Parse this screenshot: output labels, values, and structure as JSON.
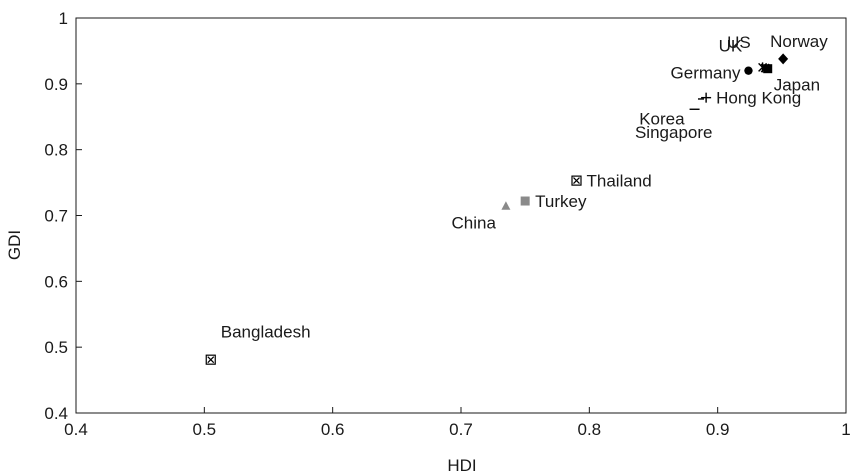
{
  "chart_data": {
    "type": "scatter",
    "xlabel": "HDI",
    "ylabel": "GDI",
    "xlim": [
      0.4,
      1.0
    ],
    "ylim": [
      0.4,
      1.0
    ],
    "xticks": [
      0.4,
      0.5,
      0.6,
      0.7,
      0.8,
      0.9,
      1
    ],
    "yticks": [
      0.4,
      0.5,
      0.6,
      0.7,
      0.8,
      0.9,
      1
    ],
    "tick_labels": [
      "0.4",
      "0.5",
      "0.6",
      "0.7",
      "0.8",
      "0.9",
      "1"
    ],
    "grid": false,
    "points": [
      {
        "label": "Bangladesh",
        "x": 0.505,
        "y": 0.481,
        "marker": "boxed-x",
        "color": "#000000",
        "label_pos": "above-right"
      },
      {
        "label": "China",
        "x": 0.735,
        "y": 0.714,
        "marker": "triangle",
        "color": "#8a8a8a",
        "label_pos": "below-left"
      },
      {
        "label": "Turkey",
        "x": 0.75,
        "y": 0.722,
        "marker": "square",
        "color": "#8a8a8a",
        "label_pos": "right"
      },
      {
        "label": "Thailand",
        "x": 0.79,
        "y": 0.753,
        "marker": "boxed-x",
        "color": "#000000",
        "label_pos": "right"
      },
      {
        "label": "Korea",
        "x": 0.882,
        "y": 0.872,
        "marker": "dash",
        "color": "#000000",
        "label_pos": "below-left"
      },
      {
        "label": "Singapore",
        "x": 0.887,
        "y": 0.877,
        "marker": "minus",
        "color": "#000000",
        "label_pos": "below-right"
      },
      {
        "label": "Hong Kong",
        "x": 0.891,
        "y": 0.879,
        "marker": "plus",
        "color": "#000000",
        "label_pos": "right"
      },
      {
        "label": "Germany",
        "x": 0.924,
        "y": 0.92,
        "marker": "circle",
        "color": "#000000",
        "label_pos": "left"
      },
      {
        "label": "UK",
        "x": 0.935,
        "y": 0.925,
        "marker": "star",
        "color": "#000000",
        "label_pos": "upper-left"
      },
      {
        "label": "US",
        "x": 0.937,
        "y": 0.924,
        "marker": "cross",
        "color": "#000000",
        "label_pos": "above"
      },
      {
        "label": "Japan",
        "x": 0.939,
        "y": 0.923,
        "marker": "square",
        "color": "#000000",
        "label_pos": "lower-right"
      },
      {
        "label": "Norway",
        "x": 0.951,
        "y": 0.938,
        "marker": "diamond",
        "color": "#000000",
        "label_pos": "upper-right"
      }
    ]
  }
}
